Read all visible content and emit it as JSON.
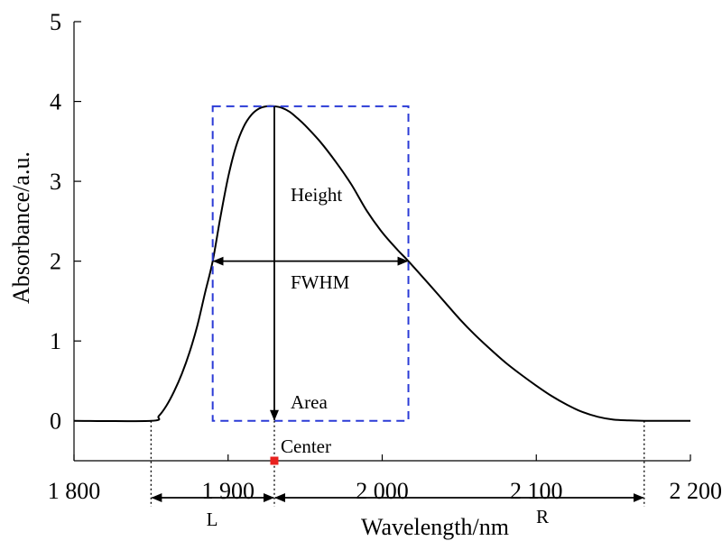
{
  "chart_data": {
    "type": "line",
    "title": "",
    "xlabel": "Wavelength/nm",
    "ylabel": "Absorbance/a.u.",
    "xlim": [
      1800,
      2200
    ],
    "ylim": [
      -0.5,
      5
    ],
    "x_ticks": [
      1800,
      1900,
      2000,
      2100,
      2200
    ],
    "x_tick_labels": [
      "1 800",
      "1 900",
      "2 000",
      "2 100",
      "2 200"
    ],
    "y_ticks": [
      0,
      1,
      2,
      3,
      4,
      5
    ],
    "y_tick_labels": [
      "0",
      "1",
      "2",
      "3",
      "4",
      "5"
    ],
    "grid": false,
    "series": [
      {
        "color": "#000000",
        "x": [
          1800,
          1850,
          1855,
          1860,
          1865,
          1870,
          1875,
          1880,
          1885,
          1890,
          1895,
          1900,
          1905,
          1910,
          1915,
          1920,
          1925,
          1930,
          1935,
          1940,
          1945,
          1950,
          1960,
          1970,
          1980,
          1990,
          2000,
          2010,
          2017,
          2030,
          2040,
          2050,
          2060,
          2070,
          2080,
          2090,
          2100,
          2110,
          2120,
          2130,
          2140,
          2150,
          2160,
          2170,
          2180,
          2190,
          2200
        ],
        "y": [
          0,
          0,
          0.06,
          0.19,
          0.37,
          0.59,
          0.86,
          1.19,
          1.6,
          2.0,
          2.55,
          3.05,
          3.43,
          3.68,
          3.83,
          3.91,
          3.94,
          3.94,
          3.92,
          3.87,
          3.79,
          3.7,
          3.49,
          3.24,
          2.96,
          2.63,
          2.36,
          2.14,
          2.0,
          1.72,
          1.5,
          1.28,
          1.08,
          0.9,
          0.73,
          0.58,
          0.44,
          0.31,
          0.2,
          0.11,
          0.05,
          0.015,
          0.005,
          0,
          0,
          0,
          0
        ]
      }
    ],
    "annotations": {
      "height_label": "Height",
      "fwhm_label": "FWHM",
      "area_label": "Area",
      "center_label": "Center",
      "left_label": "L",
      "right_label": "R",
      "center_x": 1930,
      "peak_height": 3.94,
      "fwhm_left": 1890,
      "fwhm_right": 2017,
      "fwhm_level": 2.0,
      "range_left": 1850,
      "range_right": 2170,
      "box_color": "#2b3bd6",
      "center_marker_color": "#e8211e"
    }
  }
}
